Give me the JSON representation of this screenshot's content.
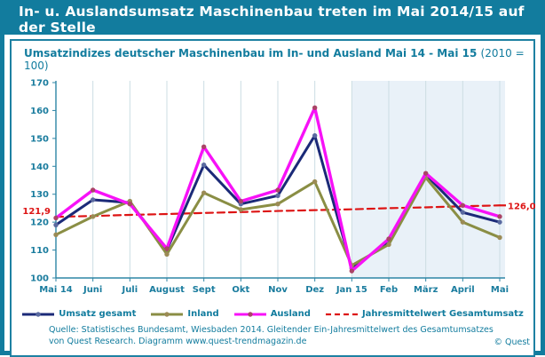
{
  "header": {
    "title": "In- u. Auslandsumsatz Maschinenbau treten im Mai 2014/15 auf der Stelle"
  },
  "chart": {
    "title_main": "Umsatzindizes deutscher Maschinenbau im In- und Ausland Mai 14 - Mai 15",
    "title_suffix": "(2010 = 100)"
  },
  "chart_data": {
    "type": "line",
    "categories": [
      "Mai 14",
      "Juni",
      "Juli",
      "August",
      "Sept",
      "Okt",
      "Nov",
      "Dez",
      "Jan 15",
      "Feb",
      "März",
      "April",
      "Mai"
    ],
    "series": [
      {
        "name": "Umsatz gesamt",
        "color": "#1b2a78",
        "marker_color": "#5a6aa0",
        "width": 3,
        "values": [
          119,
          128,
          127,
          110,
          140.5,
          126.5,
          129.5,
          151,
          103.5,
          113,
          137,
          123.5,
          120
        ]
      },
      {
        "name": "Inland",
        "color": "#8a8e44",
        "marker_color": "#9b8b55",
        "width": 3,
        "values": [
          115.5,
          122,
          127.5,
          108.5,
          130.5,
          124.5,
          126.5,
          134.5,
          104.5,
          112,
          136,
          120,
          114.5
        ]
      },
      {
        "name": "Ausland",
        "color": "#f711f7",
        "marker_color": "#aa4466",
        "width": 3.4,
        "values": [
          121.5,
          131.5,
          126.5,
          110.5,
          147,
          127.5,
          131.5,
          161,
          102.5,
          114,
          137.5,
          126,
          122
        ]
      },
      {
        "name": "Jahresmittelwert Gesamtumsatz",
        "color": "#dd1414",
        "dashed": true,
        "width": 2.2,
        "values": [
          121.9,
          122.2,
          122.6,
          122.9,
          123.3,
          123.6,
          124.0,
          124.3,
          124.6,
          125.0,
          125.3,
          125.7,
          126.0
        ]
      }
    ],
    "ylim": [
      100,
      170
    ],
    "ytick_step": 10,
    "grid": "vertical",
    "legend_position": "bottom",
    "highlight_region": {
      "from": "Jan 15",
      "to_end": true,
      "color": "#e9f1f8"
    },
    "annotations": {
      "left": {
        "label": "121,9",
        "value": 121.9
      },
      "right": {
        "label": "126,0",
        "value": 126.0
      }
    }
  },
  "footer": {
    "source_line1": "Quelle: Statistisches Bundesamt, Wiesbaden 2014. Gleitender Ein-Jahresmittelwert  des Gesamtumsatzes",
    "source_line2": "von Quest Research. Diagramm  www.quest-trendmagazin.de",
    "copyright": "© Quest"
  },
  "colors": {
    "accent_teal": "#127c9e",
    "annotation_red": "#dd1414",
    "highlight_blue": "#e9f1f8",
    "gridline": "#ccdde3"
  }
}
